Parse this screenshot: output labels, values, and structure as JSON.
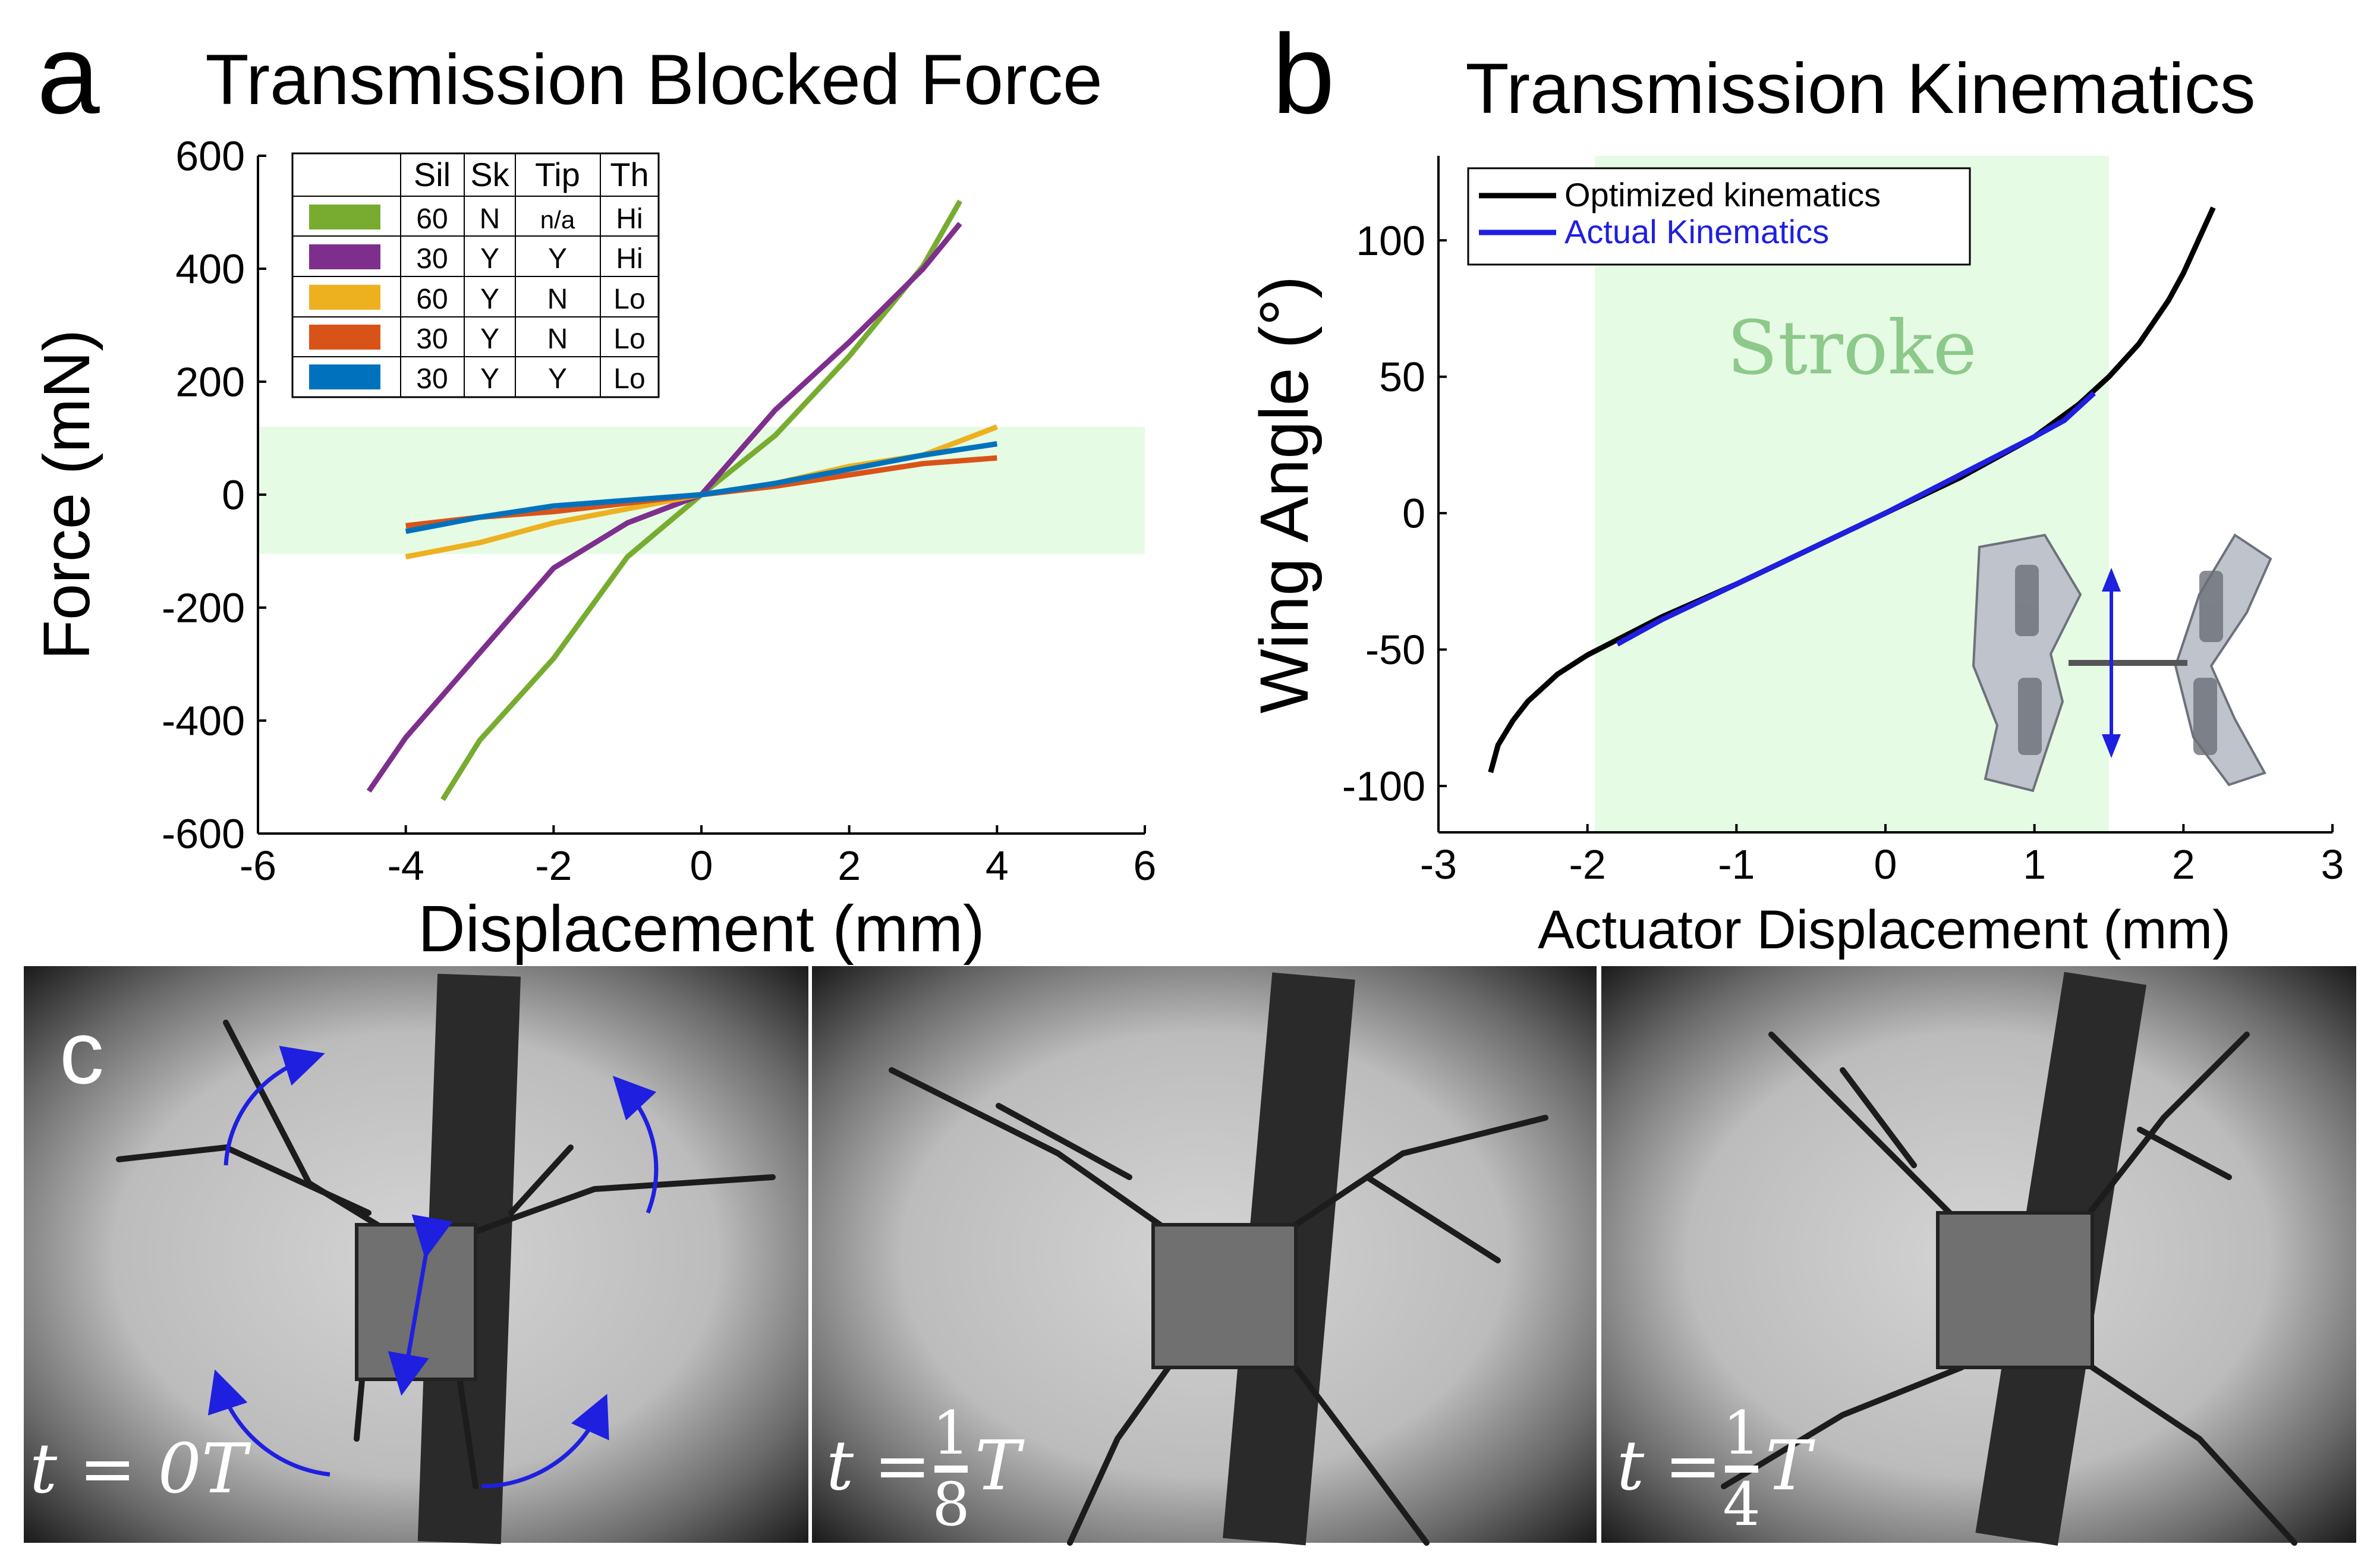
{
  "panel_labels": {
    "a": "a",
    "b": "b",
    "c": "c"
  },
  "chart_data": [
    {
      "type": "line",
      "title": "Transmission Blocked Force",
      "xlabel": "Displacement (mm)",
      "ylabel": "Force  (mN)",
      "xlim": [
        -6,
        6
      ],
      "ylim": [
        -600,
        600
      ],
      "xticks": [
        -6,
        -4,
        -2,
        0,
        2,
        4,
        6
      ],
      "yticks": [
        600,
        400,
        200,
        0,
        -200,
        -400,
        -600
      ],
      "shaded_band": {
        "y": [
          -105,
          120
        ],
        "x": [
          -6,
          6
        ],
        "color": "#e6fbe4"
      },
      "legend": {
        "placement": "top-left",
        "headers": [
          "",
          "Sil",
          "Sk",
          "Tip",
          "Th"
        ],
        "rows": [
          {
            "color": "#77ac30",
            "cells": [
              "60",
              "N",
              "n/a",
              "Hi"
            ]
          },
          {
            "color": "#7e2f8e",
            "cells": [
              "30",
              "Y",
              "Y",
              "Hi"
            ]
          },
          {
            "color": "#edb120",
            "cells": [
              "60",
              "Y",
              "N",
              "Lo"
            ]
          },
          {
            "color": "#d95319",
            "cells": [
              "30",
              "Y",
              "N",
              "Lo"
            ]
          },
          {
            "color": "#0072bd",
            "cells": [
              "30",
              "Y",
              "Y",
              "Lo"
            ]
          }
        ]
      },
      "series": [
        {
          "name": "green 60 N n/a Hi",
          "color": "#77ac30",
          "x": [
            -3.5,
            -3,
            -2,
            -1,
            0,
            1,
            2,
            3,
            3.5
          ],
          "y": [
            -540,
            -435,
            -290,
            -110,
            0,
            105,
            245,
            405,
            520
          ]
        },
        {
          "name": "purple 30 Y Y Hi",
          "color": "#7e2f8e",
          "x": [
            -4.5,
            -4,
            -3,
            -2,
            -1,
            0,
            1,
            2,
            3,
            3.5
          ],
          "y": [
            -525,
            -430,
            -280,
            -130,
            -50,
            0,
            150,
            270,
            400,
            480
          ]
        },
        {
          "name": "yellow 60 Y N Lo",
          "color": "#edb120",
          "x": [
            -4,
            -3,
            -2,
            -1,
            0,
            1,
            2,
            3,
            4
          ],
          "y": [
            -110,
            -85,
            -50,
            -25,
            0,
            20,
            50,
            70,
            120
          ]
        },
        {
          "name": "orange 30 Y N Lo",
          "color": "#d95319",
          "x": [
            -4,
            -3,
            -2,
            -1,
            0,
            1,
            2,
            3,
            4
          ],
          "y": [
            -55,
            -40,
            -30,
            -15,
            0,
            15,
            35,
            55,
            65
          ]
        },
        {
          "name": "blue 30 Y Y Lo",
          "color": "#0072bd",
          "x": [
            -4,
            -3,
            -2,
            -1,
            0,
            1,
            2,
            3,
            4
          ],
          "y": [
            -65,
            -40,
            -20,
            -10,
            0,
            20,
            45,
            70,
            90
          ]
        }
      ]
    },
    {
      "type": "line",
      "title": "Transmission Kinematics",
      "xlabel": "Actuator Displacement (mm)",
      "ylabel": "Wing Angle (°)",
      "xlim": [
        -3,
        3
      ],
      "ylim": [
        -117,
        131
      ],
      "xticks": [
        -3,
        -2,
        -1,
        0,
        1,
        2,
        3
      ],
      "yticks": [
        100,
        50,
        0,
        -50,
        -100
      ],
      "shaded_region": {
        "x": [
          -1.95,
          1.5
        ],
        "label": "Stroke",
        "color": "#e6fbe4",
        "label_color": "#8cc98a"
      },
      "legend": {
        "placement": "top-left",
        "entries": [
          "Optimized kinematics",
          "Actual Kinematics"
        ]
      },
      "series": [
        {
          "name": "Optimized kinematics",
          "color": "#000000",
          "x": [
            -2.65,
            -2.6,
            -2.5,
            -2.4,
            -2.2,
            -2.0,
            -1.75,
            -1.5,
            -1.0,
            -0.5,
            0,
            0.5,
            1.0,
            1.3,
            1.5,
            1.7,
            1.9,
            2.0,
            2.1,
            2.2
          ],
          "y": [
            -95,
            -85,
            -76,
            -69,
            -59,
            -52,
            -45,
            -38,
            -26,
            -13,
            0,
            13,
            28,
            40,
            50,
            62,
            78,
            88,
            100,
            112
          ]
        },
        {
          "name": "Actual Kinematics",
          "color": "#1f1fe0",
          "x": [
            -1.8,
            -1.5,
            -1.0,
            -0.5,
            0,
            0.5,
            1.0,
            1.2,
            1.4
          ],
          "y": [
            -48,
            -39,
            -26,
            -13,
            0,
            14,
            28,
            34,
            44
          ]
        }
      ]
    }
  ],
  "photo_frames": {
    "frames": [
      {
        "label_text": "t = 0T"
      },
      {
        "label_text": "t = 1/8 T",
        "math_t": "t",
        "math_eq": "=",
        "num": "1",
        "den": "8",
        "math_T": "T"
      },
      {
        "label_text": "t = 1/4 T",
        "math_t": "t",
        "math_eq": "=",
        "num": "1",
        "den": "4",
        "math_T": "T"
      }
    ]
  }
}
